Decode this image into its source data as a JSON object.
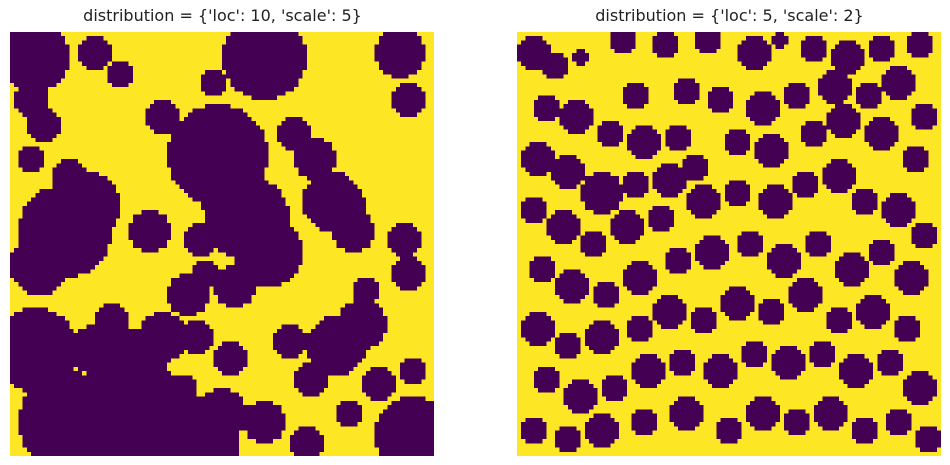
{
  "colors": {
    "pore": "#440154",
    "solid": "#fde725"
  },
  "panels": [
    {
      "title": "distribution = {'loc': 10, 'scale': 5}"
    },
    {
      "title": "distribution = {'loc': 5, 'scale': 2}"
    }
  ],
  "chart_data": [
    {
      "type": "heatmap",
      "title": "distribution = {'loc': 10, 'scale': 5}",
      "axes": "off",
      "grid_size": [
        100,
        100
      ],
      "values_legend": {
        "0": "purple (#440154)",
        "1": "yellow (#fde725)"
      },
      "approximate_disks": [
        [
          6,
          6,
          8
        ],
        [
          20,
          5,
          4
        ],
        [
          26,
          10,
          3
        ],
        [
          60,
          6,
          10
        ],
        [
          92,
          5,
          6
        ],
        [
          94,
          16,
          4
        ],
        [
          5,
          16,
          4
        ],
        [
          8,
          22,
          4
        ],
        [
          5,
          30,
          3
        ],
        [
          14,
          34,
          4
        ],
        [
          18,
          41,
          8
        ],
        [
          13,
          47,
          11
        ],
        [
          7,
          55,
          7
        ],
        [
          36,
          20,
          4
        ],
        [
          48,
          12,
          3
        ],
        [
          49,
          29,
          12
        ],
        [
          56,
          44,
          10
        ],
        [
          52,
          37,
          8
        ],
        [
          61,
          52,
          8
        ],
        [
          67,
          24,
          4
        ],
        [
          72,
          30,
          5
        ],
        [
          76,
          40,
          7
        ],
        [
          81,
          47,
          5
        ],
        [
          79,
          41,
          5
        ],
        [
          84,
          61,
          3
        ],
        [
          93,
          49,
          4
        ],
        [
          94,
          57,
          4
        ],
        [
          77,
          74,
          7
        ],
        [
          83,
          69,
          6
        ],
        [
          66,
          73,
          4
        ],
        [
          71,
          82,
          4
        ],
        [
          57,
          55,
          4
        ],
        [
          46,
          57,
          3
        ],
        [
          45,
          49,
          4
        ],
        [
          33,
          47,
          5
        ],
        [
          42,
          62,
          5
        ],
        [
          53,
          60,
          5
        ],
        [
          44,
          72,
          4
        ],
        [
          41,
          84,
          3
        ],
        [
          87,
          83,
          4
        ],
        [
          95,
          80,
          3
        ],
        [
          95,
          95,
          9
        ],
        [
          6,
          75,
          10
        ],
        [
          14,
          92,
          12
        ],
        [
          28,
          90,
          14
        ],
        [
          43,
          97,
          11
        ],
        [
          29,
          78,
          8
        ],
        [
          36,
          72,
          6
        ],
        [
          20,
          75,
          6
        ],
        [
          52,
          77,
          4
        ],
        [
          60,
          92,
          5
        ],
        [
          70,
          97,
          4
        ],
        [
          80,
          90,
          3
        ],
        [
          24,
          68,
          4
        ],
        [
          50,
          90,
          6
        ]
      ]
    },
    {
      "type": "heatmap",
      "title": "distribution = {'loc': 5, 'scale': 2}",
      "axes": "off",
      "grid_size": [
        100,
        100
      ],
      "values_legend": {
        "0": "purple (#440154)",
        "1": "yellow (#fde725)"
      },
      "approximate_disks": [
        [
          4,
          5,
          4
        ],
        [
          9,
          8,
          3
        ],
        [
          15,
          6,
          2
        ],
        [
          25,
          2,
          3
        ],
        [
          35,
          3,
          3
        ],
        [
          45,
          2,
          3
        ],
        [
          56,
          5,
          4
        ],
        [
          62,
          2,
          2
        ],
        [
          70,
          4,
          3
        ],
        [
          78,
          6,
          4
        ],
        [
          86,
          4,
          3
        ],
        [
          95,
          3,
          3
        ],
        [
          28,
          15,
          3
        ],
        [
          40,
          14,
          3
        ],
        [
          48,
          16,
          3
        ],
        [
          58,
          18,
          4
        ],
        [
          66,
          15,
          3
        ],
        [
          75,
          13,
          4
        ],
        [
          83,
          15,
          3
        ],
        [
          90,
          12,
          4
        ],
        [
          96,
          20,
          3
        ],
        [
          7,
          18,
          3
        ],
        [
          14,
          20,
          4
        ],
        [
          22,
          24,
          3
        ],
        [
          30,
          26,
          4
        ],
        [
          38,
          25,
          3
        ],
        [
          5,
          30,
          4
        ],
        [
          12,
          33,
          4
        ],
        [
          20,
          38,
          5
        ],
        [
          28,
          36,
          3
        ],
        [
          36,
          35,
          4
        ],
        [
          42,
          32,
          3
        ],
        [
          52,
          26,
          3
        ],
        [
          60,
          28,
          4
        ],
        [
          70,
          24,
          3
        ],
        [
          77,
          21,
          4
        ],
        [
          86,
          24,
          4
        ],
        [
          94,
          30,
          3
        ],
        [
          4,
          42,
          3
        ],
        [
          11,
          46,
          4
        ],
        [
          18,
          50,
          3
        ],
        [
          26,
          46,
          4
        ],
        [
          34,
          44,
          3
        ],
        [
          44,
          40,
          4
        ],
        [
          52,
          38,
          3
        ],
        [
          61,
          40,
          4
        ],
        [
          68,
          36,
          3
        ],
        [
          76,
          34,
          4
        ],
        [
          82,
          40,
          3
        ],
        [
          90,
          42,
          4
        ],
        [
          96,
          48,
          3
        ],
        [
          6,
          56,
          3
        ],
        [
          13,
          60,
          4
        ],
        [
          21,
          62,
          3
        ],
        [
          29,
          58,
          4
        ],
        [
          38,
          54,
          3
        ],
        [
          46,
          52,
          4
        ],
        [
          55,
          50,
          3
        ],
        [
          63,
          54,
          4
        ],
        [
          71,
          50,
          3
        ],
        [
          79,
          56,
          4
        ],
        [
          86,
          52,
          3
        ],
        [
          93,
          58,
          4
        ],
        [
          5,
          70,
          4
        ],
        [
          12,
          74,
          3
        ],
        [
          20,
          72,
          4
        ],
        [
          29,
          70,
          3
        ],
        [
          36,
          66,
          4
        ],
        [
          44,
          68,
          3
        ],
        [
          52,
          64,
          4
        ],
        [
          60,
          66,
          3
        ],
        [
          68,
          62,
          4
        ],
        [
          76,
          68,
          3
        ],
        [
          84,
          66,
          4
        ],
        [
          92,
          70,
          3
        ],
        [
          7,
          82,
          3
        ],
        [
          15,
          86,
          4
        ],
        [
          23,
          84,
          3
        ],
        [
          31,
          80,
          4
        ],
        [
          39,
          78,
          3
        ],
        [
          48,
          80,
          4
        ],
        [
          56,
          76,
          3
        ],
        [
          64,
          78,
          4
        ],
        [
          72,
          76,
          3
        ],
        [
          80,
          80,
          4
        ],
        [
          88,
          78,
          3
        ],
        [
          95,
          84,
          4
        ],
        [
          4,
          94,
          3
        ],
        [
          12,
          96,
          3
        ],
        [
          20,
          94,
          4
        ],
        [
          30,
          92,
          3
        ],
        [
          40,
          90,
          4
        ],
        [
          50,
          94,
          3
        ],
        [
          58,
          90,
          4
        ],
        [
          66,
          92,
          3
        ],
        [
          74,
          90,
          4
        ],
        [
          82,
          94,
          3
        ],
        [
          90,
          92,
          3
        ],
        [
          97,
          96,
          3
        ]
      ]
    }
  ]
}
